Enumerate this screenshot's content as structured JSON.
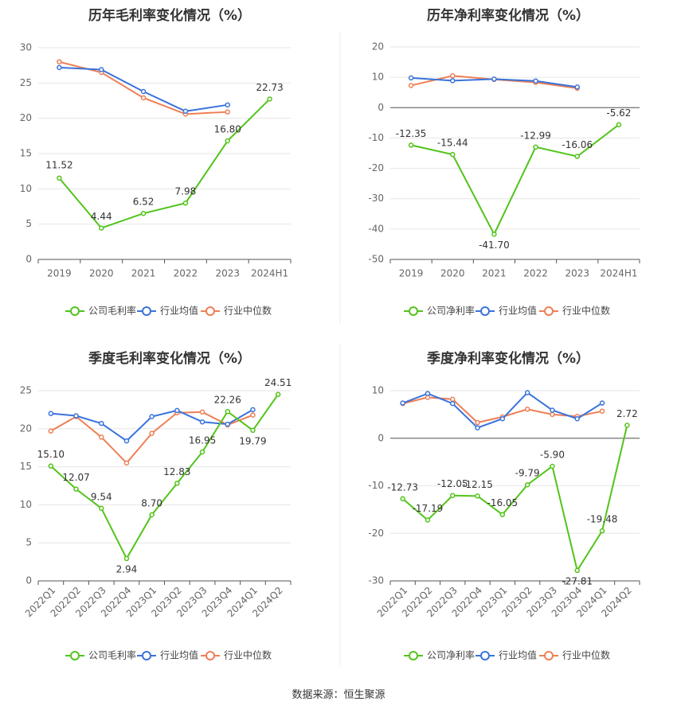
{
  "footer": {
    "source": "数据来源：恒生聚源"
  },
  "colors": {
    "company": "#52c41a",
    "industry_avg": "#3a73db",
    "industry_median": "#ee7f55",
    "grid": "#e6e6e6",
    "axis_text": "#666666"
  },
  "chart_data": [
    {
      "type": "line",
      "title": "历年毛利率变化情况（%）",
      "categories": [
        "2019",
        "2020",
        "2021",
        "2022",
        "2023",
        "2024H1"
      ],
      "ylim": [
        0,
        30
      ],
      "yticks": [
        0,
        5,
        10,
        15,
        20,
        25,
        30
      ],
      "series": [
        {
          "name": "公司毛利率",
          "key": "company",
          "values": [
            11.52,
            4.44,
            6.52,
            7.98,
            16.8,
            22.73
          ],
          "labels": [
            "11.52",
            "4.44",
            "6.52",
            "7.98",
            "16.80",
            "22.73"
          ]
        },
        {
          "name": "行业均值",
          "key": "industry_avg",
          "values": [
            27.2,
            26.9,
            23.8,
            21.0,
            21.9,
            null
          ]
        },
        {
          "name": "行业中位数",
          "key": "industry_median",
          "values": [
            28.0,
            26.5,
            22.9,
            20.6,
            20.9,
            null
          ]
        }
      ],
      "legend": "bottom"
    },
    {
      "type": "line",
      "title": "历年净利率变化情况（%）",
      "categories": [
        "2019",
        "2020",
        "2021",
        "2022",
        "2023",
        "2024H1"
      ],
      "ylim": [
        -50,
        20
      ],
      "yticks": [
        -50,
        -40,
        -30,
        -20,
        -10,
        0,
        10,
        20
      ],
      "series": [
        {
          "name": "公司净利率",
          "key": "company",
          "values": [
            -12.35,
            -15.44,
            -41.7,
            -12.99,
            -16.06,
            -5.62
          ],
          "labels": [
            "-12.35",
            "-15.44",
            "-41.70",
            "-12.99",
            "-16.06",
            "-5.62"
          ]
        },
        {
          "name": "行业均值",
          "key": "industry_avg",
          "values": [
            9.8,
            8.9,
            9.4,
            8.8,
            6.8,
            null
          ]
        },
        {
          "name": "行业中位数",
          "key": "industry_median",
          "values": [
            7.3,
            10.5,
            9.3,
            8.3,
            6.4,
            null
          ]
        }
      ],
      "legend": "bottom"
    },
    {
      "type": "line",
      "title": "季度毛利率变化情况（%）",
      "categories": [
        "2022Q1",
        "2022Q2",
        "2022Q3",
        "2022Q4",
        "2023Q1",
        "2023Q2",
        "2023Q3",
        "2023Q4",
        "2024Q1",
        "2024Q2"
      ],
      "ylim": [
        0,
        25
      ],
      "yticks": [
        0,
        5,
        10,
        15,
        20,
        25
      ],
      "series": [
        {
          "name": "公司毛利率",
          "key": "company",
          "values": [
            15.1,
            12.07,
            9.54,
            2.94,
            8.7,
            12.83,
            16.95,
            22.26,
            19.79,
            24.51
          ],
          "labels": [
            "15.10",
            "12.07",
            "9.54",
            "2.94",
            "8.70",
            "12.83",
            "16.95",
            "22.26",
            "19.79",
            "24.51"
          ]
        },
        {
          "name": "行业均值",
          "key": "industry_avg",
          "values": [
            22.0,
            21.7,
            20.7,
            18.4,
            21.6,
            22.4,
            20.9,
            20.6,
            22.5,
            null
          ]
        },
        {
          "name": "行业中位数",
          "key": "industry_median",
          "values": [
            19.7,
            21.6,
            18.9,
            15.5,
            19.4,
            22.1,
            22.2,
            20.5,
            21.8,
            null
          ]
        }
      ],
      "legend": "bottom"
    },
    {
      "type": "line",
      "title": "季度净利率变化情况（%）",
      "categories": [
        "2022Q1",
        "2022Q2",
        "2022Q3",
        "2022Q4",
        "2023Q1",
        "2023Q2",
        "2023Q3",
        "2023Q4",
        "2024Q1",
        "2024Q2"
      ],
      "ylim": [
        -30,
        10
      ],
      "yticks": [
        -30,
        -20,
        -10,
        0,
        10
      ],
      "series": [
        {
          "name": "公司净利率",
          "key": "company",
          "values": [
            -12.73,
            -17.19,
            -12.05,
            -12.15,
            -16.05,
            -9.79,
            -5.9,
            -27.81,
            -19.48,
            2.72
          ],
          "labels": [
            "-12.73",
            "-17.19",
            "-12.05",
            "-12.15",
            "-16.05",
            "-9.79",
            "-5.90",
            "-27.81",
            "-19.48",
            "2.72"
          ]
        },
        {
          "name": "行业均值",
          "key": "industry_avg",
          "values": [
            7.4,
            9.4,
            7.3,
            2.2,
            4.1,
            9.6,
            5.9,
            4.1,
            7.4,
            null
          ]
        },
        {
          "name": "行业中位数",
          "key": "industry_median",
          "values": [
            7.3,
            8.6,
            8.2,
            3.3,
            4.5,
            6.1,
            5.0,
            4.6,
            5.7,
            null
          ]
        }
      ],
      "legend": "bottom"
    }
  ]
}
